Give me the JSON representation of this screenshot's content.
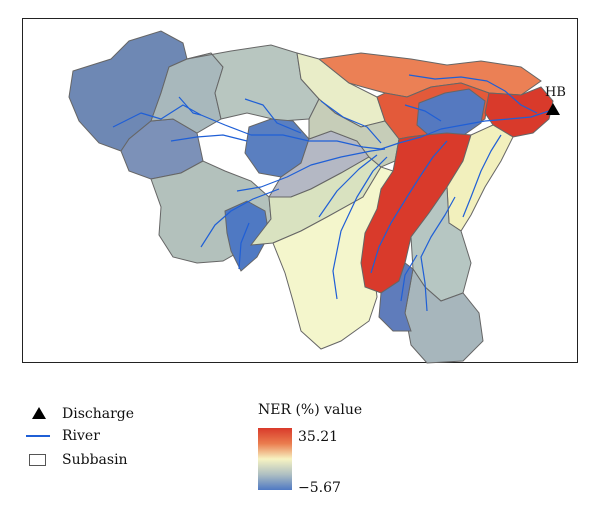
{
  "map": {
    "station_label": "HB",
    "colors": {
      "subbasin_outline": "#666666",
      "river": "#1f5fd6",
      "high": "#d93a2b",
      "mid": "#f7f3c2",
      "low": "#4f79c3"
    }
  },
  "legend": {
    "items": [
      {
        "symbol": "triangle-icon",
        "label": "Discharge"
      },
      {
        "symbol": "river-line-icon",
        "label": "River"
      },
      {
        "symbol": "subbasin-box-icon",
        "label": "Subbasin"
      }
    ]
  },
  "colorbar": {
    "title": "NER (%) value",
    "max_label": "35.21",
    "min_label": "−5.67",
    "max": 35.21,
    "min": -5.67
  }
}
